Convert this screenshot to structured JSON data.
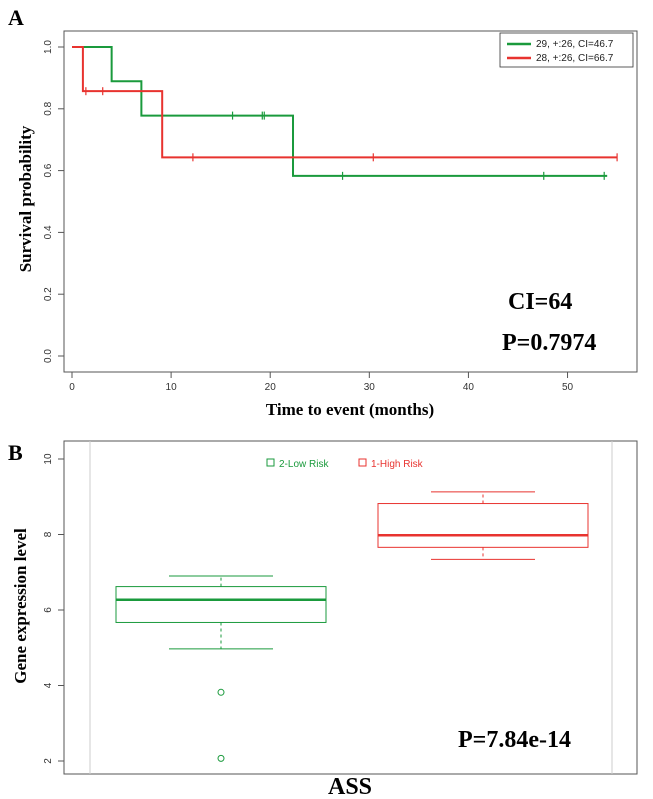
{
  "chart_data": [
    {
      "type": "line",
      "panel_label": "A",
      "xlabel": "Time to event (months)",
      "ylabel": "Survival probability",
      "xlim": [
        0,
        56
      ],
      "ylim": [
        0,
        1.0
      ],
      "x_ticks": [
        0,
        10,
        20,
        30,
        40,
        50
      ],
      "y_ticks": [
        0.0,
        0.2,
        0.4,
        0.6,
        0.8,
        1.0
      ],
      "grid": false,
      "legend_position": "top-right",
      "series": [
        {
          "name": "29, +:26, CI=46.7",
          "color": "#1a9a3c",
          "steps": [
            [
              0,
              1.0
            ],
            [
              4,
              0.889
            ],
            [
              7,
              0.778
            ],
            [
              22.3,
              0.583
            ],
            [
              54,
              0.583
            ]
          ],
          "censors": [
            [
              16.2,
              0.778
            ],
            [
              19.2,
              0.778
            ],
            [
              19.4,
              0.778
            ],
            [
              27.3,
              0.583
            ],
            [
              47.6,
              0.583
            ],
            [
              53.7,
              0.583
            ]
          ]
        },
        {
          "name": "28, +:26, CI=66.7",
          "color": "#e8332f",
          "steps": [
            [
              0,
              1.0
            ],
            [
              1.1,
              0.857
            ],
            [
              9.1,
              0.643
            ],
            [
              55,
              0.643
            ]
          ],
          "censors": [
            [
              1.4,
              0.857
            ],
            [
              3.1,
              0.857
            ],
            [
              12.2,
              0.643
            ],
            [
              30.4,
              0.643
            ],
            [
              55,
              0.643
            ]
          ]
        }
      ],
      "annotations": [
        "CI=64",
        "P=0.7974"
      ]
    },
    {
      "type": "box",
      "panel_label": "B",
      "xlabel": "ASS",
      "ylabel": "Gene expression level",
      "ylim": [
        2,
        10
      ],
      "y_ticks": [
        2,
        4,
        6,
        8,
        10
      ],
      "grid": false,
      "legend_position": "top-center",
      "series": [
        {
          "name": "2-Low Risk",
          "color": "#1a9a3c",
          "whisker_low": 4.97,
          "q1": 5.67,
          "median": 6.27,
          "q3": 6.62,
          "whisker_high": 6.9,
          "outliers": [
            3.82,
            2.07
          ]
        },
        {
          "name": "1-High Risk",
          "color": "#e8332f",
          "whisker_low": 7.34,
          "q1": 7.66,
          "median": 7.98,
          "q3": 8.82,
          "whisker_high": 9.13,
          "outliers": []
        }
      ],
      "annotations": [
        "P=7.84e-14"
      ]
    }
  ]
}
